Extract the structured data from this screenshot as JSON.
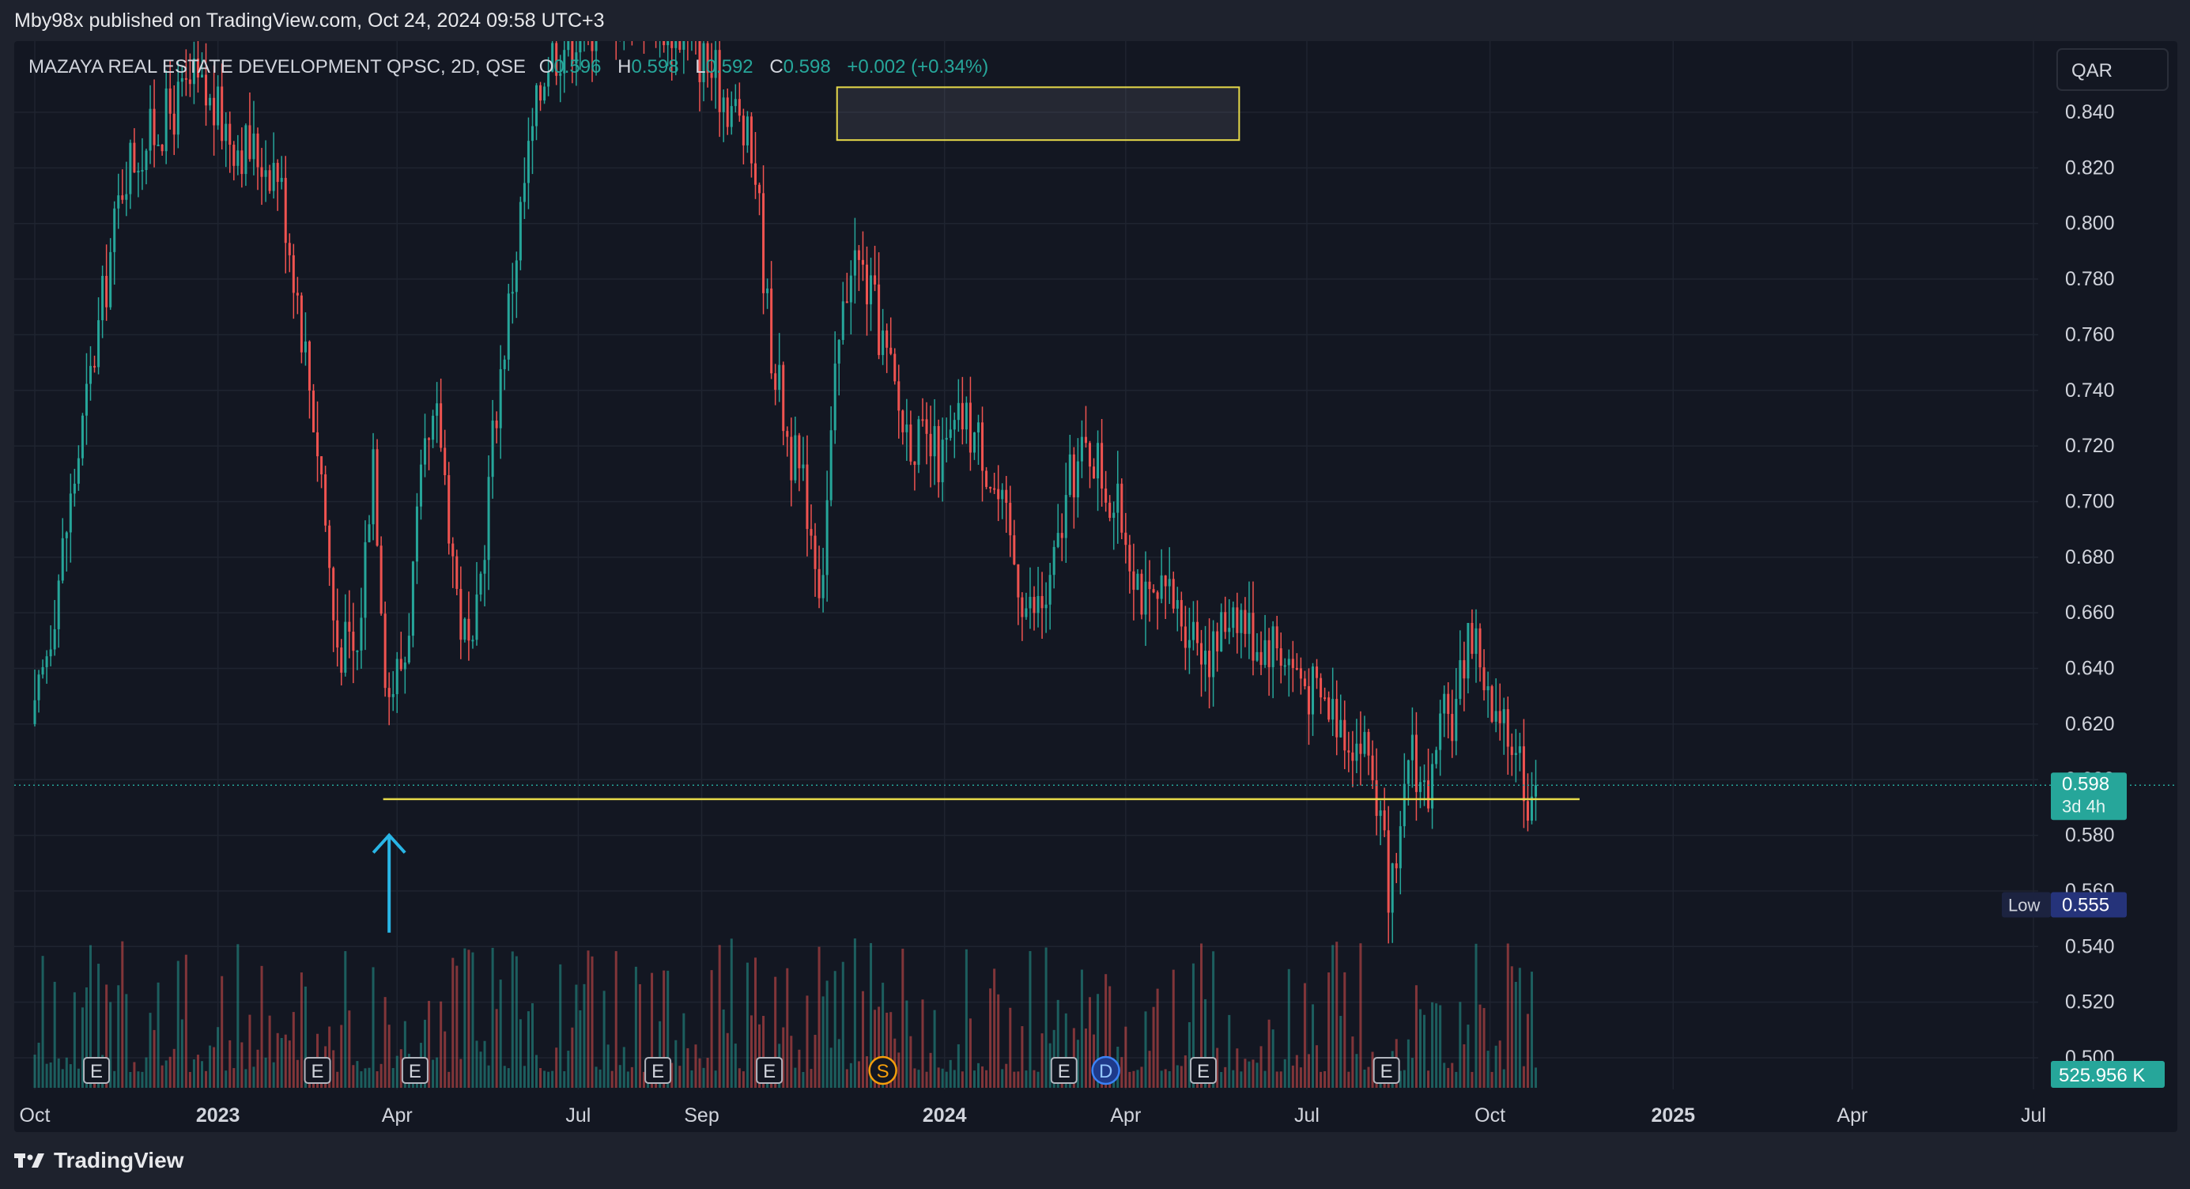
{
  "header": {
    "publisher": "Mby98x published on TradingView.com, Oct 24, 2024 09:58 UTC+3"
  },
  "legend": {
    "symbol": "MAZAYA REAL ESTATE DEVELOPMENT QPSC, 2D, QSE",
    "o_label": "O",
    "o_value": "0.596",
    "h_label": "H",
    "h_value": "0.598",
    "l_label": "L",
    "l_value": "0.592",
    "c_label": "C",
    "c_value": "0.598",
    "change": "+0.002 (+0.34%)"
  },
  "currency": "QAR",
  "price_label": {
    "value": "0.598",
    "countdown": "3d 4h"
  },
  "low_label": {
    "label": "Low",
    "value": "0.555"
  },
  "volume_label": "525.956 K",
  "footer": {
    "brand": "TradingView"
  },
  "colors": {
    "up": "#26a69a",
    "down": "#ef5350",
    "drawing": "#e6d94a",
    "arrow": "#29b6e6",
    "background": "#131722",
    "grid": "#1f2430"
  },
  "chart_data": {
    "type": "candlestick",
    "series": [
      {
        "name": "MAZAYA REAL ESTATE DEVELOPMENT QPSC, 2D, QSE"
      }
    ],
    "y_axis": {
      "min": 0.49,
      "max": 0.855,
      "ticks": [
        "0.840",
        "0.820",
        "0.800",
        "0.780",
        "0.760",
        "0.740",
        "0.720",
        "0.700",
        "0.680",
        "0.660",
        "0.640",
        "0.620",
        "0.600",
        "0.580",
        "0.560",
        "0.540",
        "0.520",
        "0.500"
      ],
      "tick_values": [
        0.84,
        0.82,
        0.8,
        0.78,
        0.76,
        0.74,
        0.72,
        0.7,
        0.68,
        0.66,
        0.64,
        0.62,
        0.6,
        0.58,
        0.56,
        0.54,
        0.52,
        0.5
      ]
    },
    "x_axis": {
      "ticks": [
        {
          "label": "Oct",
          "date": "2022-10-01",
          "bold": false
        },
        {
          "label": "2023",
          "date": "2023-01-01",
          "bold": true
        },
        {
          "label": "Apr",
          "date": "2023-04-01",
          "bold": false
        },
        {
          "label": "Jul",
          "date": "2023-07-01",
          "bold": false
        },
        {
          "label": "Sep",
          "date": "2023-09-01",
          "bold": false
        },
        {
          "label": "2024",
          "date": "2024-01-01",
          "bold": true
        },
        {
          "label": "Apr",
          "date": "2024-04-01",
          "bold": false
        },
        {
          "label": "Jul",
          "date": "2024-07-01",
          "bold": false
        },
        {
          "label": "Oct",
          "date": "2024-10-01",
          "bold": false
        },
        {
          "label": "2025",
          "date": "2025-01-01",
          "bold": true
        },
        {
          "label": "Apr",
          "date": "2025-04-01",
          "bold": false
        },
        {
          "label": "Jul",
          "date": "2025-07-01",
          "bold": false
        }
      ]
    },
    "price_path": [
      [
        "2022-10-01",
        0.62
      ],
      [
        "2022-11-15",
        0.82
      ],
      [
        "2022-12-20",
        0.85
      ],
      [
        "2023-01-10",
        0.83
      ],
      [
        "2023-01-31",
        0.82
      ],
      [
        "2023-02-09",
        0.78
      ],
      [
        "2023-02-22",
        0.71
      ],
      [
        "2023-03-01",
        0.65
      ],
      [
        "2023-03-12",
        0.645
      ],
      [
        "2023-03-20",
        0.72
      ],
      [
        "2023-03-27",
        0.63
      ],
      [
        "2023-04-05",
        0.645
      ],
      [
        "2023-04-14",
        0.71
      ],
      [
        "2023-04-22",
        0.73
      ],
      [
        "2023-05-02",
        0.66
      ],
      [
        "2023-05-09",
        0.64
      ],
      [
        "2023-05-20",
        0.73
      ],
      [
        "2023-06-05",
        0.82
      ],
      [
        "2023-06-15",
        0.86
      ],
      [
        "2023-07-01",
        0.87
      ],
      [
        "2023-08-05",
        0.88
      ],
      [
        "2023-09-01",
        0.86
      ],
      [
        "2023-09-18",
        0.84
      ],
      [
        "2023-09-28",
        0.82
      ],
      [
        "2023-10-05",
        0.76
      ],
      [
        "2023-10-15",
        0.72
      ],
      [
        "2023-10-24",
        0.7
      ],
      [
        "2023-10-31",
        0.67
      ],
      [
        "2023-11-08",
        0.75
      ],
      [
        "2023-11-15",
        0.79
      ],
      [
        "2023-11-22",
        0.78
      ],
      [
        "2023-11-30",
        0.76
      ],
      [
        "2023-12-10",
        0.73
      ],
      [
        "2023-12-20",
        0.72
      ],
      [
        "2023-12-31",
        0.715
      ],
      [
        "2024-01-10",
        0.73
      ],
      [
        "2024-01-20",
        0.72
      ],
      [
        "2024-02-01",
        0.69
      ],
      [
        "2024-02-12",
        0.66
      ],
      [
        "2024-02-22",
        0.665
      ],
      [
        "2024-03-05",
        0.71
      ],
      [
        "2024-03-15",
        0.72
      ],
      [
        "2024-03-25",
        0.7
      ],
      [
        "2024-04-01",
        0.69
      ],
      [
        "2024-04-12",
        0.66
      ],
      [
        "2024-04-22",
        0.665
      ],
      [
        "2024-05-05",
        0.655
      ],
      [
        "2024-05-15",
        0.645
      ],
      [
        "2024-05-25",
        0.665
      ],
      [
        "2024-06-05",
        0.65
      ],
      [
        "2024-06-15",
        0.65
      ],
      [
        "2024-06-25",
        0.64
      ],
      [
        "2024-07-05",
        0.63
      ],
      [
        "2024-07-15",
        0.625
      ],
      [
        "2024-07-25",
        0.615
      ],
      [
        "2024-08-01",
        0.61
      ],
      [
        "2024-08-06",
        0.59
      ],
      [
        "2024-08-10",
        0.565
      ],
      [
        "2024-08-14",
        0.557
      ],
      [
        "2024-08-18",
        0.58
      ],
      [
        "2024-08-22",
        0.62
      ],
      [
        "2024-08-26",
        0.6
      ],
      [
        "2024-09-01",
        0.595
      ],
      [
        "2024-09-08",
        0.62
      ],
      [
        "2024-09-14",
        0.625
      ],
      [
        "2024-09-20",
        0.655
      ],
      [
        "2024-09-26",
        0.645
      ],
      [
        "2024-10-02",
        0.62
      ],
      [
        "2024-10-08",
        0.615
      ],
      [
        "2024-10-14",
        0.615
      ],
      [
        "2024-10-20",
        0.595
      ],
      [
        "2024-10-24",
        0.598
      ]
    ],
    "volume": {
      "last_value": "525.956 K"
    },
    "annotations": {
      "support_line": {
        "price": 0.593,
        "start": "2023-03-25",
        "end": "2024-11-15"
      },
      "resistance_box": {
        "price_top": 0.849,
        "price_bottom": 0.83,
        "start": "2023-11-08",
        "end": "2024-05-28"
      },
      "arrow": {
        "date": "2023-03-28",
        "price_from": 0.545,
        "price_to": 0.58,
        "direction": "up"
      },
      "events": [
        {
          "label": "E",
          "date": "2022-11-01"
        },
        {
          "label": "E",
          "date": "2023-02-20"
        },
        {
          "label": "E",
          "date": "2023-04-10"
        },
        {
          "label": "E",
          "date": "2023-08-10"
        },
        {
          "label": "E",
          "date": "2023-10-05"
        },
        {
          "label": "S",
          "date": "2023-12-01"
        },
        {
          "label": "E",
          "date": "2024-03-01"
        },
        {
          "label": "D",
          "date": "2024-03-22"
        },
        {
          "label": "E",
          "date": "2024-05-10"
        },
        {
          "label": "E",
          "date": "2024-08-10"
        }
      ]
    }
  }
}
